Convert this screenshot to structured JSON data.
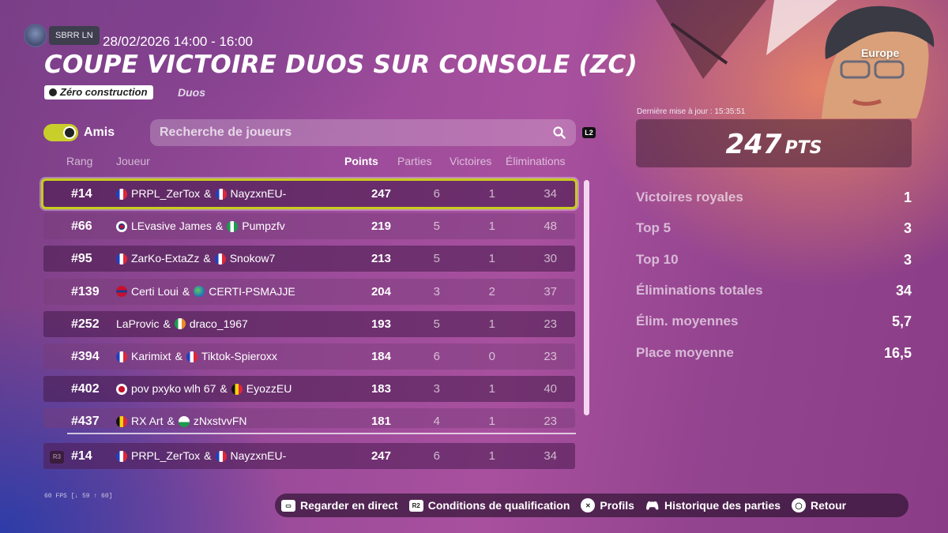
{
  "header": {
    "username": "SBRR LN",
    "datetime": "28/02/2026 14:00 - 16:00",
    "title": "COUPE VICTOIRE DUOS SUR CONSOLE (ZC)",
    "mode": "Zéro construction",
    "format": "Duos"
  },
  "filters": {
    "friends_label": "Amis",
    "search_placeholder": "Recherche de joueurs",
    "search_shortcut": "L2"
  },
  "table": {
    "columns": {
      "rank": "Rang",
      "player": "Joueur",
      "points": "Points",
      "games": "Parties",
      "wins": "Victoires",
      "elims": "Éliminations"
    },
    "rows": [
      {
        "rank": "#14",
        "p1": "PRPL_ZerTox",
        "p1_flag": "france",
        "p2": "NayzxnEU-",
        "p2_flag": "france",
        "points": "247",
        "games": "6",
        "wins": "1",
        "elims": "34"
      },
      {
        "rank": "#66",
        "p1": "LEvasive James",
        "p1_flag": "south-korea",
        "p2": "Pumpzfv",
        "p2_flag": "nigeria",
        "points": "219",
        "games": "5",
        "wins": "1",
        "elims": "48"
      },
      {
        "rank": "#95",
        "p1": "ZarKo-ExtaZz",
        "p1_flag": "france",
        "p2": "Snokow7",
        "p2_flag": "france",
        "points": "213",
        "games": "5",
        "wins": "1",
        "elims": "30"
      },
      {
        "rank": "#139",
        "p1": "Certi Loui",
        "p1_flag": "norway",
        "p2": "CERTI-PSMAJJE",
        "p2_flag": "globe",
        "points": "204",
        "games": "3",
        "wins": "2",
        "elims": "37"
      },
      {
        "rank": "#252",
        "p1": "LaProvic",
        "p1_flag": "",
        "p2": "draco_1967",
        "p2_flag": "ireland",
        "points": "193",
        "games": "5",
        "wins": "1",
        "elims": "23"
      },
      {
        "rank": "#394",
        "p1": "Karimixt",
        "p1_flag": "france",
        "p2": "Tiktok-Spieroxx",
        "p2_flag": "france",
        "points": "184",
        "games": "6",
        "wins": "0",
        "elims": "23"
      },
      {
        "rank": "#402",
        "p1": "pov pxyko wlh 67",
        "p1_flag": "japan",
        "p2": "EyozzEU",
        "p2_flag": "belgium",
        "points": "183",
        "games": "3",
        "wins": "1",
        "elims": "40"
      },
      {
        "rank": "#437",
        "p1": "RX  Art",
        "p1_flag": "belgium",
        "p2": "zNxstvvFN",
        "p2_flag": "wales",
        "points": "181",
        "games": "4",
        "wins": "1",
        "elims": "23"
      }
    ],
    "my_row": {
      "rank": "#14",
      "p1": "PRPL_ZerTox",
      "p1_flag": "france",
      "p2": "NayzxnEU-",
      "p2_flag": "france",
      "points": "247",
      "games": "6",
      "wins": "1",
      "elims": "34"
    },
    "my_row_shortcut": "R3",
    "scroll_thumb_fraction": 1.0
  },
  "panel": {
    "region": "Europe",
    "last_update": "Dernière mise à jour : 15:35:51",
    "points_value": "247",
    "points_unit": "PTS",
    "stats": [
      {
        "label": "Victoires royales",
        "value": "1"
      },
      {
        "label": "Top 5",
        "value": "3"
      },
      {
        "label": "Top 10",
        "value": "3"
      },
      {
        "label": "Éliminations totales",
        "value": "34"
      },
      {
        "label": "Élim. moyennes",
        "value": "5,7"
      },
      {
        "label": "Place moyenne",
        "value": "16,5"
      }
    ]
  },
  "footer": {
    "fps": "60 FPS [↓ 59 ↑ 60]",
    "actions": [
      {
        "label": "Regarder en direct",
        "icon": "touchpad-icon",
        "glyph": "▭"
      },
      {
        "label": "Conditions de qualification",
        "icon": "r2-icon",
        "glyph": "R2"
      },
      {
        "label": "Profils",
        "icon": "cross-button-icon",
        "glyph": "✕"
      },
      {
        "label": "Historique des parties",
        "icon": "controller-icon",
        "glyph": "🎮"
      },
      {
        "label": "Retour",
        "icon": "circle-button-icon",
        "glyph": "◯"
      }
    ]
  },
  "colors": {
    "accent": "#c8cc1c",
    "france": [
      "#1f3fbf",
      "#ffffff",
      "#e0263a"
    ],
    "belgium": [
      "#111111",
      "#f5d20d",
      "#e0263a"
    ],
    "ireland": [
      "#1a9b4b",
      "#ffffff",
      "#f08a24"
    ]
  }
}
